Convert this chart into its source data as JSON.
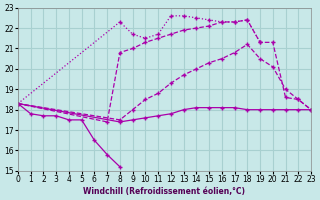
{
  "bg_color": "#c8e8e8",
  "grid_color": "#a8d0d0",
  "line_color": "#aa00aa",
  "xlim": [
    0,
    23
  ],
  "ylim": [
    15,
    23
  ],
  "xticks": [
    0,
    1,
    2,
    3,
    4,
    5,
    6,
    7,
    8,
    9,
    10,
    11,
    12,
    13,
    14,
    15,
    16,
    17,
    18,
    19,
    20,
    21,
    22,
    23
  ],
  "yticks": [
    15,
    16,
    17,
    18,
    19,
    20,
    21,
    22,
    23
  ],
  "xlabel": "Windchill (Refroidissement éolien,°C)",
  "lines": [
    {
      "x": [
        0,
        1,
        2,
        3,
        4,
        5,
        6,
        7,
        8
      ],
      "y": [
        18.3,
        17.8,
        17.7,
        17.7,
        17.5,
        17.5,
        16.5,
        15.8,
        15.2
      ],
      "style": "-",
      "marker": "+"
    },
    {
      "x": [
        0,
        8,
        9,
        10,
        11,
        12,
        13,
        14,
        15,
        16,
        17,
        18,
        19,
        20,
        21,
        22,
        23
      ],
      "y": [
        18.3,
        17.5,
        18.0,
        18.5,
        18.8,
        19.3,
        19.7,
        20.0,
        20.3,
        20.5,
        20.8,
        21.2,
        20.5,
        20.1,
        19.0,
        18.5,
        18.0
      ],
      "style": "--",
      "marker": "+"
    },
    {
      "x": [
        0,
        8,
        9,
        10,
        11,
        12,
        13,
        14,
        15,
        16,
        17,
        18,
        19
      ],
      "y": [
        18.3,
        22.3,
        21.7,
        21.5,
        21.7,
        22.6,
        22.6,
        22.5,
        22.4,
        22.3,
        22.3,
        22.4,
        21.3
      ],
      "style": ":",
      "marker": "+"
    },
    {
      "x": [
        0,
        8,
        9,
        10,
        11,
        12,
        13,
        14,
        15,
        16,
        17,
        18,
        19,
        20,
        21,
        22,
        23
      ],
      "y": [
        18.3,
        17.4,
        17.5,
        17.6,
        17.7,
        17.8,
        18.0,
        18.1,
        18.1,
        18.1,
        18.1,
        18.0,
        18.0,
        18.0,
        18.0,
        18.0,
        18.0
      ],
      "style": "-",
      "marker": "+"
    },
    {
      "x": [
        0,
        7,
        8,
        9,
        10,
        11,
        12,
        13,
        14,
        15,
        16,
        17,
        18,
        19,
        20,
        21,
        22,
        23
      ],
      "y": [
        18.3,
        17.4,
        20.8,
        21.0,
        21.3,
        21.5,
        21.7,
        21.9,
        22.0,
        22.1,
        22.3,
        22.3,
        22.4,
        21.3,
        21.3,
        18.6,
        18.5,
        18.0
      ],
      "style": "--",
      "marker": "+"
    }
  ]
}
